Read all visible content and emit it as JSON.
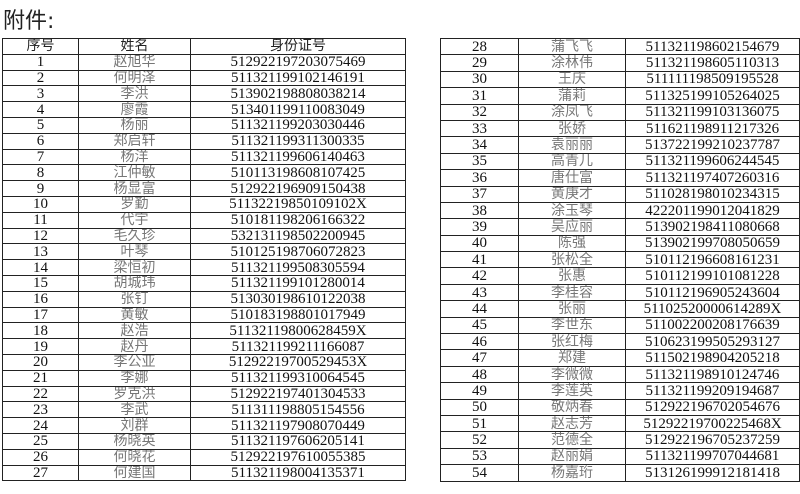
{
  "title": "附件:",
  "headers": [
    "序号",
    "姓名",
    "身份证号"
  ],
  "left_rows": [
    [
      "1",
      "赵旭华",
      "512922197203075469"
    ],
    [
      "2",
      "何明泽",
      "511321199102146191"
    ],
    [
      "3",
      "李洪",
      "513902198808038214"
    ],
    [
      "4",
      "廖霞",
      "513401199110083049"
    ],
    [
      "5",
      "杨丽",
      "511321199203030446"
    ],
    [
      "6",
      "郑启轩",
      "511321199311300335"
    ],
    [
      "7",
      "杨洋",
      "511321199606140463"
    ],
    [
      "8",
      "江仲敏",
      "510113198608107425"
    ],
    [
      "9",
      "杨显富",
      "512922196909150438"
    ],
    [
      "10",
      "罗勤",
      "51132219850109102X"
    ],
    [
      "11",
      "代宇",
      "510181198206166322"
    ],
    [
      "12",
      "毛久珍",
      "532131198502200945"
    ],
    [
      "13",
      "叶琴",
      "510125198706072823"
    ],
    [
      "14",
      "梁恒初",
      "511321199508305594"
    ],
    [
      "15",
      "胡城玮",
      "511321199101280014"
    ],
    [
      "16",
      "张钉",
      "513030198610122038"
    ],
    [
      "17",
      "黄敏",
      "510183198801017949"
    ],
    [
      "18",
      "赵浩",
      "51132119800628459X"
    ],
    [
      "19",
      "赵丹",
      "511321199211166087"
    ],
    [
      "20",
      "李公亚",
      "51292219700529453X"
    ],
    [
      "21",
      "李娜",
      "511321199310064545"
    ],
    [
      "22",
      "罗克洪",
      "512922197401304533"
    ],
    [
      "23",
      "李武",
      "511311198805154556"
    ],
    [
      "24",
      "刘群",
      "511321197908070449"
    ],
    [
      "25",
      "杨晓英",
      "511321197606205141"
    ],
    [
      "26",
      "何晓花",
      "512922197610055385"
    ],
    [
      "27",
      "何建国",
      "511321198004135371"
    ]
  ],
  "right_rows": [
    [
      "28",
      "蒲飞飞",
      "511321198602154679"
    ],
    [
      "29",
      "涂林伟",
      "511321198605110313"
    ],
    [
      "30",
      "王庆",
      "511111198509195528"
    ],
    [
      "31",
      "蒲莉",
      "511325199105264025"
    ],
    [
      "32",
      "涂凤飞",
      "511321199103136075"
    ],
    [
      "33",
      "张娇",
      "511621198911217326"
    ],
    [
      "34",
      "袁丽丽",
      "513722199210237787"
    ],
    [
      "35",
      "高青儿",
      "511321199606244545"
    ],
    [
      "36",
      "唐仕富",
      "511321197407260316"
    ],
    [
      "37",
      "黄庚才",
      "511028198010234315"
    ],
    [
      "38",
      "涂玉琴",
      "422201199012041829"
    ],
    [
      "39",
      "吴应丽",
      "513902198411080668"
    ],
    [
      "40",
      "陈强",
      "513902199708050659"
    ],
    [
      "41",
      "张松全",
      "510112196608161231"
    ],
    [
      "42",
      "张惠",
      "510112199101081228"
    ],
    [
      "43",
      "李桂容",
      "510112196905243604"
    ],
    [
      "44",
      "张丽",
      "51102520000614289X"
    ],
    [
      "45",
      "李世东",
      "511002200208176639"
    ],
    [
      "46",
      "张红梅",
      "510623199505293127"
    ],
    [
      "47",
      "郑建",
      "511502198904205218"
    ],
    [
      "48",
      "李微微",
      "511321198910124746"
    ],
    [
      "49",
      "李莲英",
      "511321199209194687"
    ],
    [
      "50",
      "敬炳春",
      "512922196702054676"
    ],
    [
      "51",
      "赵志芳",
      "51292219700225468X"
    ],
    [
      "52",
      "范德全",
      "512922196705237259"
    ],
    [
      "53",
      "赵丽娟",
      "511321199707044681"
    ],
    [
      "54",
      "杨嘉珩",
      "513126199912181418"
    ]
  ]
}
